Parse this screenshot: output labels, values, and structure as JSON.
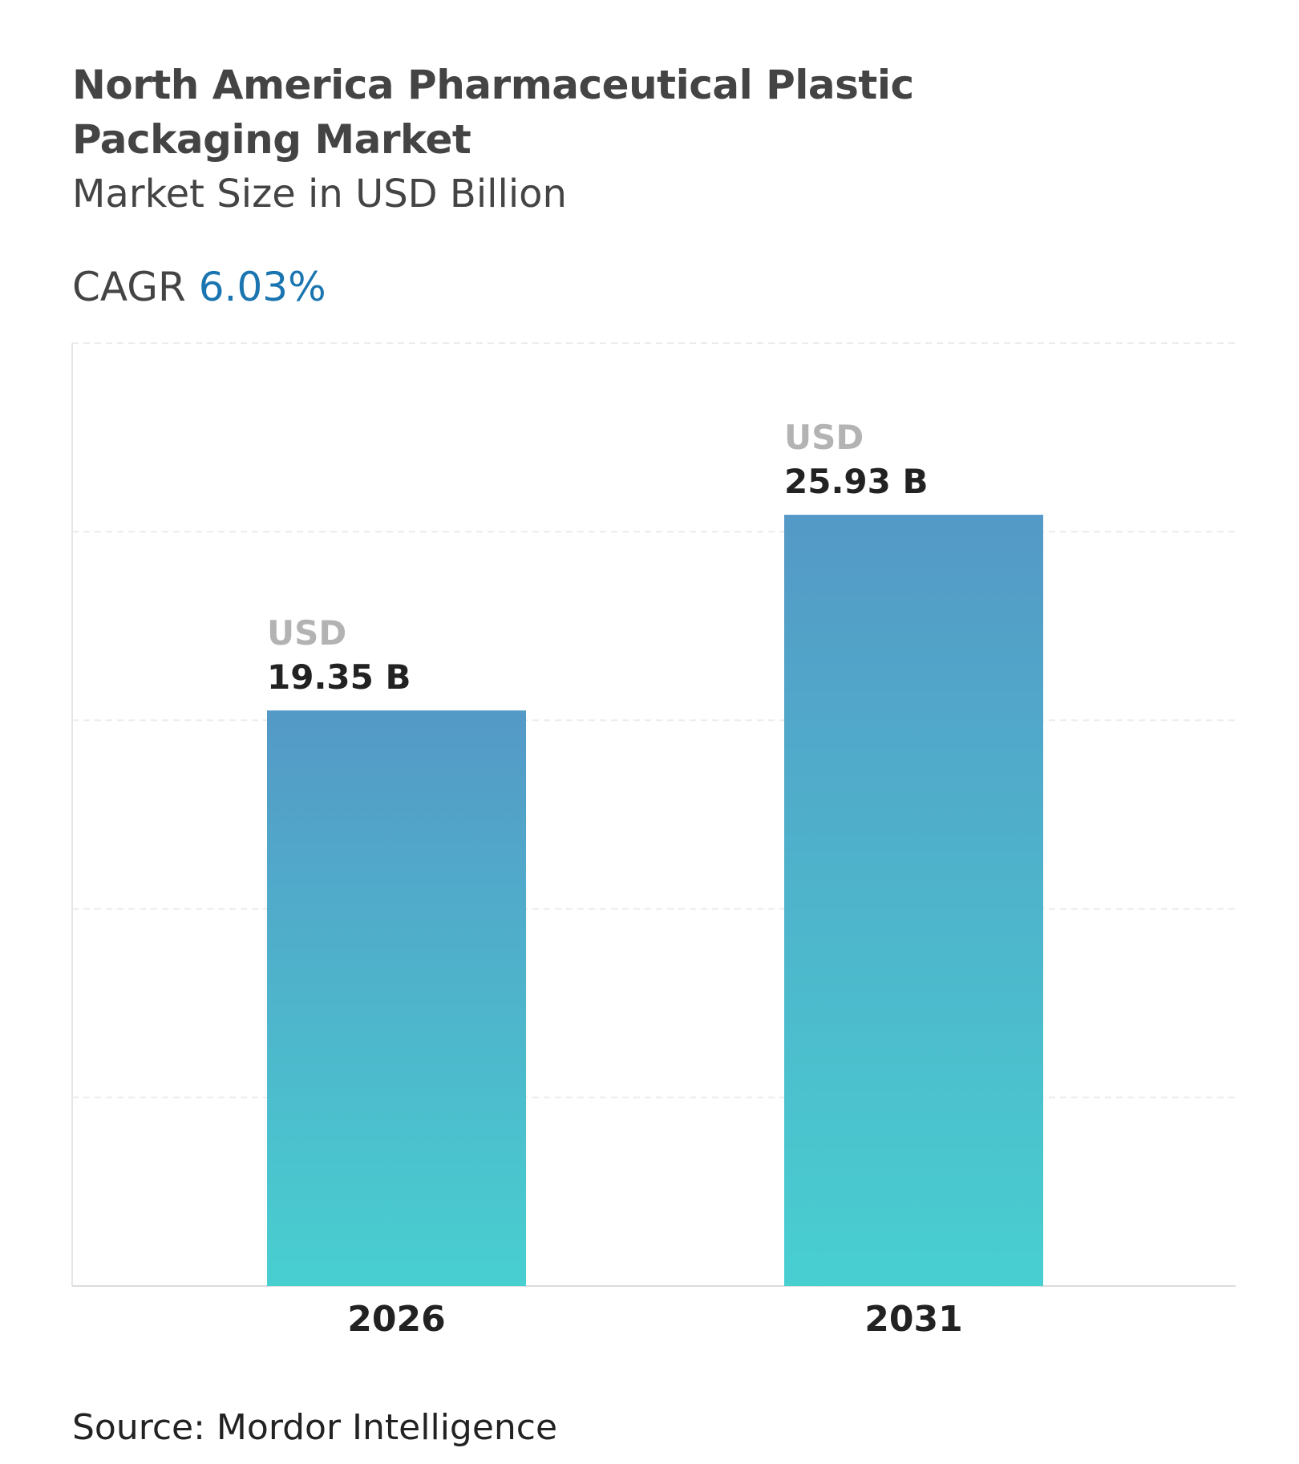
{
  "title": "North America Pharmaceutical Plastic Packaging Market",
  "subtitle": "Market Size in USD Billion",
  "cagr": {
    "label": "CAGR",
    "value": "6.03%"
  },
  "source": "Source: Mordor Intelligence",
  "colors": {
    "bar_top": "#5499c7",
    "bar_bottom": "#48cfd0",
    "cagr_value": "#1a75b0"
  },
  "chart_data": {
    "type": "bar",
    "categories": [
      "2026",
      "2031"
    ],
    "values": [
      19.35,
      25.93
    ],
    "data_labels": [
      {
        "prefix": "USD",
        "value": "19.35 B"
      },
      {
        "prefix": "USD",
        "value": "25.93 B"
      }
    ],
    "title": "North America Pharmaceutical Plastic Packaging Market",
    "xlabel": "",
    "ylabel": "",
    "ylim": [
      0,
      31.7
    ],
    "grid": true,
    "legend": "none"
  }
}
